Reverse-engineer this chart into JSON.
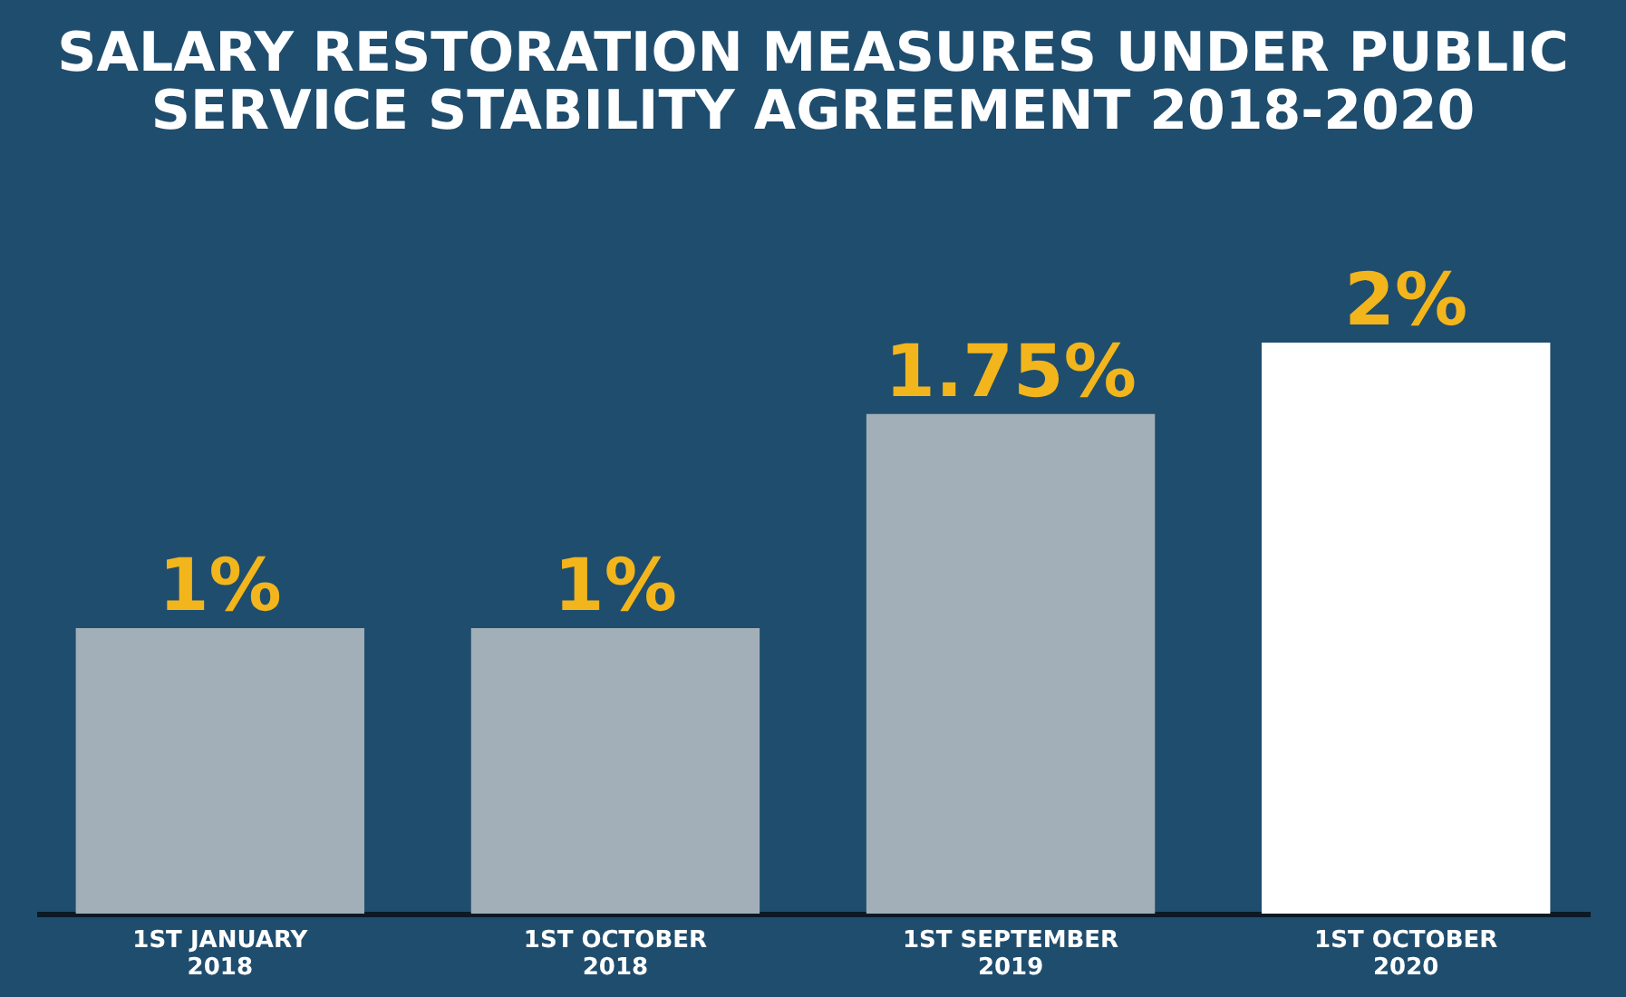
{
  "chart_data": {
    "type": "bar",
    "title": "SALARY RESTORATION MEASURES UNDER PUBLIC SERVICE STABILITY AGREEMENT 2018-2020",
    "categories": [
      "1ST JANUARY 2018",
      "1ST OCTOBER 2018",
      "1ST SEPTEMBER 2019",
      "1ST OCTOBER 2020"
    ],
    "values": [
      1,
      1,
      1.75,
      2
    ],
    "colors": [
      "#a3afb8",
      "#a3afb8",
      "#a3afb8",
      "#ffffff"
    ],
    "data_labels": true,
    "value_labels": [
      "1%",
      "1%",
      "1.75%",
      "2%"
    ]
  }
}
